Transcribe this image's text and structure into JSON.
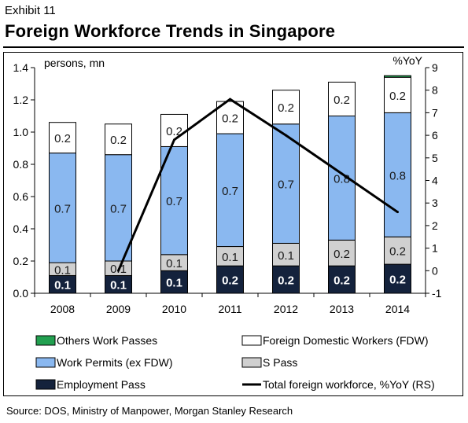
{
  "header": {
    "exhibit": "Exhibit 11",
    "title": "Foreign Workforce Trends in Singapore"
  },
  "source": "Source: DOS, Ministry of Manpower, Morgan Stanley Research",
  "chart_data": {
    "type": "bar",
    "stacked": true,
    "categories": [
      "2008",
      "2009",
      "2010",
      "2011",
      "2012",
      "2013",
      "2014"
    ],
    "left_axis": {
      "label": "persons, mn",
      "min": 0.0,
      "max": 1.4,
      "step": 0.2,
      "ticks": [
        "0.0",
        "0.2",
        "0.4",
        "0.6",
        "0.8",
        "1.0",
        "1.2",
        "1.4"
      ]
    },
    "right_axis": {
      "label": "%YoY",
      "min": -1,
      "max": 9,
      "step": 1,
      "ticks": [
        "-1",
        "0",
        "1",
        "2",
        "3",
        "4",
        "5",
        "6",
        "7",
        "8",
        "9"
      ]
    },
    "series": [
      {
        "name": "Employment Pass",
        "color": "#14223c",
        "values": [
          0.11,
          0.11,
          0.14,
          0.17,
          0.17,
          0.17,
          0.18
        ],
        "labels": [
          "0.1",
          "0.1",
          "0.1",
          "0.2",
          "0.2",
          "0.2",
          "0.2"
        ]
      },
      {
        "name": "S Pass",
        "color": "#d0d0d0",
        "values": [
          0.08,
          0.09,
          0.1,
          0.12,
          0.14,
          0.16,
          0.17
        ],
        "labels": [
          "0.1",
          "0.1",
          "0.1",
          "0.1",
          "0.1",
          "0.2",
          "0.2"
        ]
      },
      {
        "name": "Work Permits (ex FDW)",
        "color": "#8ab8f0",
        "values": [
          0.68,
          0.66,
          0.67,
          0.7,
          0.74,
          0.77,
          0.77
        ],
        "labels": [
          "0.7",
          "0.7",
          "0.7",
          "0.7",
          "0.7",
          "0.8",
          "0.8"
        ]
      },
      {
        "name": "Foreign Domestic Workers (FDW)",
        "color": "#ffffff",
        "values": [
          0.19,
          0.19,
          0.2,
          0.2,
          0.21,
          0.21,
          0.22
        ],
        "labels": [
          "0.2",
          "0.2",
          "0.2",
          "0.2",
          "0.2",
          "0.2",
          "0.2"
        ]
      },
      {
        "name": "Others Work Passes",
        "color": "#22a050",
        "values": [
          0.0,
          0.0,
          0.0,
          0.0,
          0.0,
          0.0,
          0.01
        ],
        "labels": [
          "",
          "",
          "",
          "",
          "",
          "",
          ""
        ]
      }
    ],
    "line": {
      "name": "Total foreign workforce, %YoY (RS)",
      "axis": "right",
      "color": "#000000",
      "values": [
        null,
        0.0,
        5.8,
        7.6,
        6.0,
        4.3,
        2.6
      ]
    },
    "legend": {
      "placement": "bottom",
      "order": [
        "Others Work Passes",
        "Foreign Domestic Workers (FDW)",
        "Work Permits (ex FDW)",
        "S Pass",
        "Employment Pass",
        "Total foreign workforce, %YoY (RS)"
      ]
    },
    "grid": false
  }
}
